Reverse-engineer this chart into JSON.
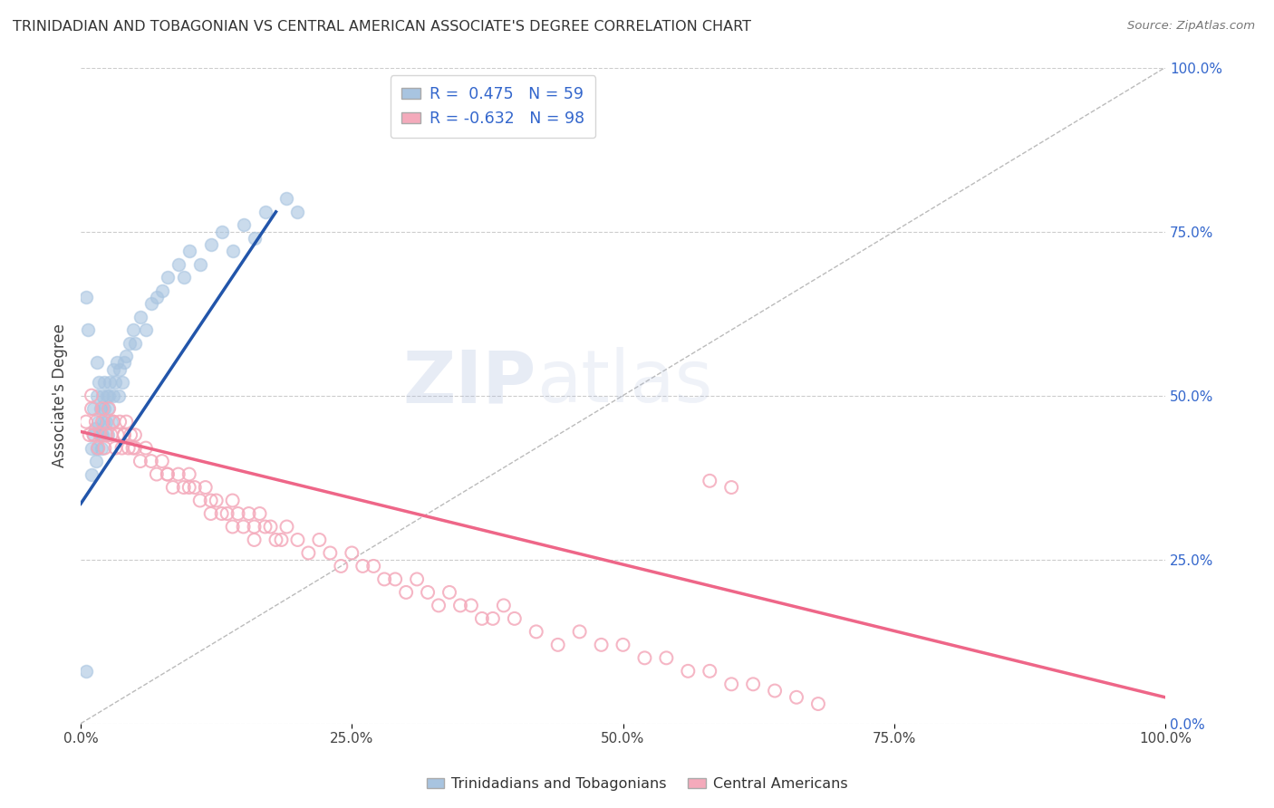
{
  "title": "TRINIDADIAN AND TOBAGONIAN VS CENTRAL AMERICAN ASSOCIATE'S DEGREE CORRELATION CHART",
  "source": "Source: ZipAtlas.com",
  "ylabel": "Associate's Degree",
  "xlim": [
    0.0,
    1.0
  ],
  "ylim": [
    0.0,
    1.0
  ],
  "xticks": [
    0.0,
    0.25,
    0.5,
    0.75,
    1.0
  ],
  "xticklabels": [
    "0.0%",
    "25.0%",
    "50.0%",
    "75.0%",
    "100.0%"
  ],
  "yticks_right": [
    0.0,
    0.25,
    0.5,
    0.75,
    1.0
  ],
  "yticklabels_right": [
    "0.0%",
    "25.0%",
    "50.0%",
    "75.0%",
    "100.0%"
  ],
  "blue_R": 0.475,
  "blue_N": 59,
  "pink_R": -0.632,
  "pink_N": 98,
  "blue_color": "#A8C4E0",
  "pink_color": "#F4AABB",
  "blue_line_color": "#2255AA",
  "pink_line_color": "#EE6688",
  "ref_line_color": "#BBBBBB",
  "legend_label_blue": "Trinidadians and Tobagonians",
  "legend_label_pink": "Central Americans",
  "watermark_zip": "ZIP",
  "watermark_atlas": "atlas",
  "blue_scatter_x": [
    0.005,
    0.007,
    0.01,
    0.01,
    0.012,
    0.012,
    0.013,
    0.014,
    0.015,
    0.015,
    0.015,
    0.016,
    0.017,
    0.018,
    0.018,
    0.019,
    0.02,
    0.02,
    0.021,
    0.022,
    0.022,
    0.023,
    0.024,
    0.025,
    0.025,
    0.026,
    0.027,
    0.028,
    0.03,
    0.03,
    0.032,
    0.033,
    0.035,
    0.036,
    0.038,
    0.04,
    0.042,
    0.045,
    0.048,
    0.05,
    0.055,
    0.06,
    0.065,
    0.07,
    0.075,
    0.08,
    0.09,
    0.095,
    0.1,
    0.11,
    0.12,
    0.13,
    0.14,
    0.15,
    0.16,
    0.17,
    0.19,
    0.2,
    0.005
  ],
  "blue_scatter_y": [
    0.65,
    0.6,
    0.38,
    0.42,
    0.44,
    0.48,
    0.45,
    0.4,
    0.5,
    0.55,
    0.42,
    0.46,
    0.52,
    0.44,
    0.48,
    0.42,
    0.44,
    0.5,
    0.46,
    0.48,
    0.52,
    0.46,
    0.5,
    0.44,
    0.48,
    0.5,
    0.52,
    0.46,
    0.5,
    0.54,
    0.52,
    0.55,
    0.5,
    0.54,
    0.52,
    0.55,
    0.56,
    0.58,
    0.6,
    0.58,
    0.62,
    0.6,
    0.64,
    0.65,
    0.66,
    0.68,
    0.7,
    0.68,
    0.72,
    0.7,
    0.73,
    0.75,
    0.72,
    0.76,
    0.74,
    0.78,
    0.8,
    0.78,
    0.08
  ],
  "pink_scatter_x": [
    0.005,
    0.008,
    0.01,
    0.012,
    0.014,
    0.016,
    0.018,
    0.02,
    0.022,
    0.024,
    0.026,
    0.028,
    0.03,
    0.032,
    0.034,
    0.036,
    0.038,
    0.04,
    0.042,
    0.044,
    0.046,
    0.048,
    0.05,
    0.055,
    0.06,
    0.065,
    0.07,
    0.075,
    0.08,
    0.085,
    0.09,
    0.095,
    0.1,
    0.105,
    0.11,
    0.115,
    0.12,
    0.125,
    0.13,
    0.135,
    0.14,
    0.145,
    0.15,
    0.155,
    0.16,
    0.165,
    0.17,
    0.175,
    0.18,
    0.185,
    0.19,
    0.2,
    0.21,
    0.22,
    0.23,
    0.24,
    0.25,
    0.26,
    0.27,
    0.28,
    0.29,
    0.3,
    0.31,
    0.32,
    0.33,
    0.34,
    0.35,
    0.36,
    0.37,
    0.38,
    0.39,
    0.4,
    0.42,
    0.44,
    0.46,
    0.48,
    0.5,
    0.52,
    0.54,
    0.56,
    0.58,
    0.6,
    0.62,
    0.64,
    0.66,
    0.68,
    0.58,
    0.01,
    0.02,
    0.03,
    0.04,
    0.05,
    0.08,
    0.1,
    0.6,
    0.12,
    0.14,
    0.16
  ],
  "pink_scatter_y": [
    0.46,
    0.44,
    0.48,
    0.44,
    0.46,
    0.42,
    0.44,
    0.46,
    0.42,
    0.44,
    0.48,
    0.44,
    0.46,
    0.42,
    0.44,
    0.46,
    0.42,
    0.44,
    0.46,
    0.42,
    0.44,
    0.42,
    0.44,
    0.4,
    0.42,
    0.4,
    0.38,
    0.4,
    0.38,
    0.36,
    0.38,
    0.36,
    0.38,
    0.36,
    0.34,
    0.36,
    0.34,
    0.34,
    0.32,
    0.32,
    0.34,
    0.32,
    0.3,
    0.32,
    0.3,
    0.32,
    0.3,
    0.3,
    0.28,
    0.28,
    0.3,
    0.28,
    0.26,
    0.28,
    0.26,
    0.24,
    0.26,
    0.24,
    0.24,
    0.22,
    0.22,
    0.2,
    0.22,
    0.2,
    0.18,
    0.2,
    0.18,
    0.18,
    0.16,
    0.16,
    0.18,
    0.16,
    0.14,
    0.12,
    0.14,
    0.12,
    0.12,
    0.1,
    0.1,
    0.08,
    0.08,
    0.06,
    0.06,
    0.05,
    0.04,
    0.03,
    0.37,
    0.5,
    0.48,
    0.46,
    0.44,
    0.42,
    0.38,
    0.36,
    0.36,
    0.32,
    0.3,
    0.28
  ],
  "blue_line": {
    "x0": 0.0,
    "y0": 0.335,
    "x1": 0.18,
    "y1": 0.78
  },
  "pink_line": {
    "x0": 0.0,
    "y0": 0.445,
    "x1": 1.0,
    "y1": 0.04
  },
  "ref_line": {
    "x0": 0.0,
    "y0": 0.0,
    "x1": 1.0,
    "y1": 1.0
  }
}
